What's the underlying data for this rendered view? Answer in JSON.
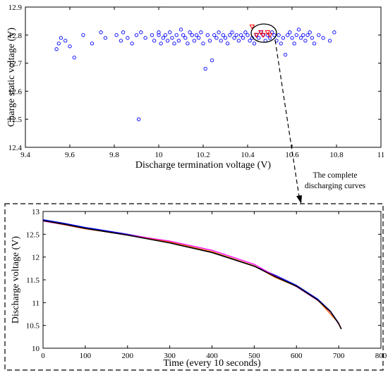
{
  "annotation": {
    "line1": "The complete",
    "line2": "discharging curves"
  },
  "chart_data": [
    {
      "type": "scatter",
      "xlabel": "Discharge termination voltage (V)",
      "ylabel": "Charge static voltage (V)",
      "xlim": [
        9.4,
        11
      ],
      "ylim": [
        12.4,
        12.9
      ],
      "xticks": [
        "9.4",
        "9.6",
        "9.8",
        "10",
        "10.2",
        "10.4",
        "10.6",
        "10.8",
        "11"
      ],
      "yticks": [
        "12.4",
        "12.5",
        "12.6",
        "12.7",
        "12.8",
        "12.9"
      ],
      "grid": false,
      "series": [
        {
          "color": "#0000ff",
          "marker": "circle",
          "points": [
            [
              9.54,
              12.75
            ],
            [
              9.55,
              12.77
            ],
            [
              9.56,
              12.79
            ],
            [
              9.58,
              12.78
            ],
            [
              9.6,
              12.76
            ],
            [
              9.62,
              12.72
            ],
            [
              9.66,
              12.8
            ],
            [
              9.7,
              12.77
            ],
            [
              9.74,
              12.81
            ],
            [
              9.76,
              12.79
            ],
            [
              9.81,
              12.8
            ],
            [
              9.83,
              12.78
            ],
            [
              9.84,
              12.81
            ],
            [
              9.86,
              12.79
            ],
            [
              9.88,
              12.77
            ],
            [
              9.9,
              12.8
            ],
            [
              9.91,
              12.5
            ],
            [
              9.92,
              12.81
            ],
            [
              9.94,
              12.79
            ],
            [
              9.97,
              12.8
            ],
            [
              9.98,
              12.78
            ],
            [
              10.0,
              12.81
            ],
            [
              10.0,
              12.8
            ],
            [
              10.01,
              12.77
            ],
            [
              10.02,
              12.79
            ],
            [
              10.03,
              12.8
            ],
            [
              10.04,
              12.78
            ],
            [
              10.05,
              12.81
            ],
            [
              10.06,
              12.79
            ],
            [
              10.07,
              12.77
            ],
            [
              10.08,
              12.8
            ],
            [
              10.09,
              12.78
            ],
            [
              10.1,
              12.82
            ],
            [
              10.11,
              12.8
            ],
            [
              10.12,
              12.79
            ],
            [
              10.13,
              12.77
            ],
            [
              10.14,
              12.81
            ],
            [
              10.15,
              12.8
            ],
            [
              10.16,
              12.78
            ],
            [
              10.17,
              12.8
            ],
            [
              10.18,
              12.79
            ],
            [
              10.19,
              12.81
            ],
            [
              10.2,
              12.77
            ],
            [
              10.21,
              12.68
            ],
            [
              10.22,
              12.8
            ],
            [
              10.23,
              12.78
            ],
            [
              10.24,
              12.71
            ],
            [
              10.25,
              12.8
            ],
            [
              10.26,
              12.79
            ],
            [
              10.27,
              12.81
            ],
            [
              10.28,
              12.78
            ],
            [
              10.29,
              12.8
            ],
            [
              10.3,
              12.79
            ],
            [
              10.31,
              12.77
            ],
            [
              10.32,
              12.8
            ],
            [
              10.33,
              12.81
            ],
            [
              10.34,
              12.79
            ],
            [
              10.35,
              12.8
            ],
            [
              10.36,
              12.78
            ],
            [
              10.37,
              12.8
            ],
            [
              10.38,
              12.79
            ],
            [
              10.39,
              12.81
            ],
            [
              10.4,
              12.8
            ],
            [
              10.41,
              12.78
            ],
            [
              10.42,
              12.79
            ],
            [
              10.43,
              12.77
            ],
            [
              10.44,
              12.8
            ],
            [
              10.45,
              12.79
            ],
            [
              10.46,
              12.81
            ],
            [
              10.47,
              12.8
            ],
            [
              10.48,
              12.78
            ],
            [
              10.49,
              12.8
            ],
            [
              10.5,
              12.79
            ],
            [
              10.51,
              12.81
            ],
            [
              10.52,
              12.8
            ],
            [
              10.53,
              12.78
            ],
            [
              10.54,
              12.8
            ],
            [
              10.55,
              12.77
            ],
            [
              10.56,
              12.79
            ],
            [
              10.57,
              12.73
            ],
            [
              10.58,
              12.8
            ],
            [
              10.59,
              12.81
            ],
            [
              10.6,
              12.79
            ],
            [
              10.61,
              12.77
            ],
            [
              10.62,
              12.8
            ],
            [
              10.63,
              12.82
            ],
            [
              10.64,
              12.79
            ],
            [
              10.65,
              12.8
            ],
            [
              10.66,
              12.78
            ],
            [
              10.67,
              12.8
            ],
            [
              10.68,
              12.81
            ],
            [
              10.69,
              12.79
            ],
            [
              10.7,
              12.77
            ],
            [
              10.72,
              12.8
            ],
            [
              10.74,
              12.79
            ],
            [
              10.77,
              12.78
            ],
            [
              10.79,
              12.81
            ]
          ]
        },
        {
          "color": "#ff0000",
          "marker": "triangle",
          "points": [
            [
              10.42,
              12.83
            ],
            [
              10.44,
              12.8
            ],
            [
              10.46,
              12.81
            ],
            [
              10.47,
              12.8
            ],
            [
              10.49,
              12.81
            ],
            [
              10.5,
              12.8
            ]
          ]
        }
      ]
    },
    {
      "type": "line",
      "xlabel": "Time (every 10 seconds)",
      "ylabel": "Discharge voltage (V)",
      "xlim": [
        0,
        800
      ],
      "ylim": [
        10,
        13
      ],
      "xticks": [
        "0",
        "100",
        "200",
        "300",
        "400",
        "500",
        "600",
        "700",
        "800"
      ],
      "yticks": [
        "10",
        "10.5",
        "11",
        "11.5",
        "12",
        "12.5",
        "13"
      ],
      "grid": false,
      "series": [
        {
          "color": "#0000ff",
          "x": [
            0,
            50,
            100,
            200,
            300,
            400,
            500,
            550,
            600,
            650,
            680,
            700,
            706
          ],
          "y": [
            12.82,
            12.74,
            12.65,
            12.5,
            12.33,
            12.1,
            11.8,
            11.6,
            11.38,
            11.08,
            10.82,
            10.55,
            10.42
          ]
        },
        {
          "color": "#ff00ff",
          "x": [
            0,
            50,
            100,
            200,
            300,
            400,
            500,
            550,
            600,
            650,
            680,
            700,
            706
          ],
          "y": [
            12.79,
            12.71,
            12.62,
            12.49,
            12.35,
            12.15,
            11.84,
            11.58,
            11.35,
            11.05,
            10.8,
            10.53,
            10.44
          ]
        },
        {
          "color": "#ff6600",
          "x": [
            0,
            100,
            200,
            300,
            400,
            500,
            550,
            600,
            650,
            700,
            706
          ],
          "y": [
            12.8,
            12.62,
            12.48,
            12.33,
            12.12,
            11.81,
            11.55,
            11.36,
            11.06,
            10.55,
            10.43
          ]
        },
        {
          "color": "#000000",
          "x": [
            0,
            50,
            100,
            200,
            300,
            400,
            500,
            550,
            600,
            650,
            680,
            700,
            706
          ],
          "y": [
            12.8,
            12.72,
            12.63,
            12.48,
            12.31,
            12.1,
            11.8,
            11.57,
            11.36,
            11.06,
            10.81,
            10.54,
            10.42
          ]
        }
      ]
    }
  ]
}
